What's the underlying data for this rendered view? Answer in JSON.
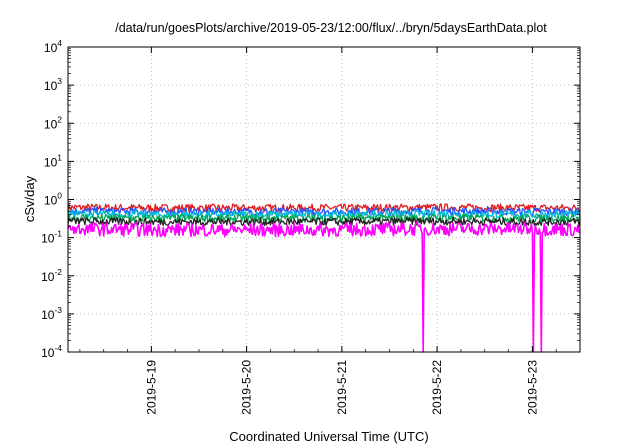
{
  "chart_data": {
    "type": "line",
    "title": "/data/run/goesPlots/archive/2019-05-23/12:00/flux/../bryn/5daysEarthData.plot",
    "xlabel": "Coordinated Universal Time (UTC)",
    "ylabel": "cSv/day",
    "yscale": "log",
    "ylim": [
      0.0001,
      10000
    ],
    "xlim": [
      "2019-05-18 03:00",
      "2019-05-23 12:00"
    ],
    "x_ticks": [
      "2019-5-19",
      "2019-5-20",
      "2019-5-21",
      "2019-5-22",
      "2019-5-23"
    ],
    "y_ticks": [
      {
        "base": "10",
        "exp": "-4"
      },
      {
        "base": "10",
        "exp": "-3"
      },
      {
        "base": "10",
        "exp": "-2"
      },
      {
        "base": "10",
        "exp": "-1"
      },
      {
        "base": "10",
        "exp": "0"
      },
      {
        "base": "10",
        "exp": "1"
      },
      {
        "base": "10",
        "exp": "2"
      },
      {
        "base": "10",
        "exp": "3"
      },
      {
        "base": "10",
        "exp": "4"
      }
    ],
    "grid": true,
    "series": [
      {
        "color": "#e41a1c",
        "typical": 0.62,
        "x": [
          "2019-05-18 03:00",
          "2019-05-19 00:00",
          "2019-05-20 00:00",
          "2019-05-21 00:00",
          "2019-05-22 00:00",
          "2019-05-23 00:00",
          "2019-05-23 12:00"
        ],
        "y": [
          0.62,
          0.6,
          0.6,
          0.6,
          0.62,
          0.6,
          0.6
        ]
      },
      {
        "color": "#2255ff",
        "typical": 0.5,
        "x": [
          "2019-05-18 03:00",
          "2019-05-19 00:00",
          "2019-05-20 00:00",
          "2019-05-21 00:00",
          "2019-05-22 00:00",
          "2019-05-23 00:00",
          "2019-05-23 12:00"
        ],
        "y": [
          0.5,
          0.48,
          0.48,
          0.48,
          0.5,
          0.48,
          0.48
        ]
      },
      {
        "color": "#00bcd4",
        "typical": 0.42,
        "x": [
          "2019-05-18 03:00",
          "2019-05-19 00:00",
          "2019-05-20 00:00",
          "2019-05-21 00:00",
          "2019-05-22 00:00",
          "2019-05-23 00:00",
          "2019-05-23 12:00"
        ],
        "y": [
          0.42,
          0.4,
          0.4,
          0.4,
          0.42,
          0.4,
          0.4
        ]
      },
      {
        "color": "#00a650",
        "typical": 0.33,
        "x": [
          "2019-05-18 03:00",
          "2019-05-19 00:00",
          "2019-05-20 00:00",
          "2019-05-21 00:00",
          "2019-05-22 00:00",
          "2019-05-23 00:00",
          "2019-05-23 12:00"
        ],
        "y": [
          0.33,
          0.32,
          0.32,
          0.32,
          0.33,
          0.32,
          0.32
        ]
      },
      {
        "color": "#222222",
        "typical": 0.27,
        "x": [
          "2019-05-18 03:00",
          "2019-05-19 00:00",
          "2019-05-20 00:00",
          "2019-05-21 00:00",
          "2019-05-22 00:00",
          "2019-05-23 00:00",
          "2019-05-23 12:00"
        ],
        "y": [
          0.27,
          0.26,
          0.26,
          0.26,
          0.27,
          0.26,
          0.26
        ]
      },
      {
        "color": "#ff00ff",
        "typical": 0.2,
        "x": [
          "2019-05-18 03:00",
          "2019-05-19 00:00",
          "2019-05-20 00:00",
          "2019-05-21 00:00",
          "2019-05-21 20:15",
          "2019-05-21 20:30",
          "2019-05-21 20:45",
          "2019-05-23 00:00",
          "2019-05-23 00:15",
          "2019-05-23 00:30",
          "2019-05-23 02:00",
          "2019-05-23 02:15",
          "2019-05-23 02:30",
          "2019-05-23 12:00"
        ],
        "y": [
          0.17,
          0.16,
          0.16,
          0.16,
          0.17,
          0.0001,
          0.17,
          0.17,
          0.0001,
          0.17,
          0.17,
          0.0001,
          0.17,
          0.16
        ]
      }
    ]
  }
}
